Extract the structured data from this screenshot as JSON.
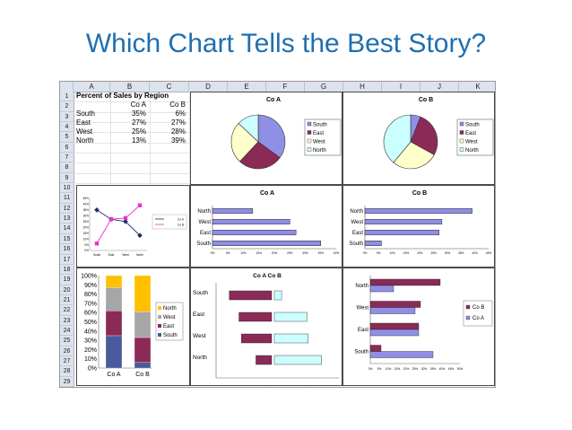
{
  "slide": {
    "title": "Which Chart Tells the Best Story?"
  },
  "sheet": {
    "columns": [
      "A",
      "B",
      "C",
      "D",
      "E",
      "F",
      "G",
      "H",
      "I",
      "J",
      "K"
    ],
    "rows": [
      "1",
      "2",
      "3",
      "4",
      "5",
      "6",
      "7",
      "8",
      "9",
      "10",
      "11",
      "12",
      "13",
      "14",
      "15",
      "16",
      "17",
      "18",
      "19",
      "20",
      "21",
      "22",
      "23",
      "24",
      "25",
      "26",
      "27",
      "28",
      "29"
    ],
    "table": {
      "title": "Percent of Sales by Region",
      "headers": [
        "Co A",
        "Co B"
      ],
      "regions": [
        "South",
        "East",
        "West",
        "North"
      ],
      "co_a": [
        "35%",
        "27%",
        "25%",
        "13%"
      ],
      "co_b": [
        "6%",
        "27%",
        "28%",
        "39%"
      ]
    }
  },
  "colors": {
    "south": "#8f8fe6",
    "east": "#8b2a57",
    "west": "#ffffcc",
    "north": "#ccffff",
    "coa_line": "#1f2a6e",
    "cob_line": "#e633cc",
    "gold": "#ffc000",
    "gray": "#a6a6a6",
    "darkred": "#8b2a57",
    "slate": "#4a5a9c"
  },
  "chart_data": [
    {
      "type": "pie",
      "title": "Co A",
      "categories": [
        "South",
        "East",
        "West",
        "North"
      ],
      "values": [
        35,
        27,
        25,
        13
      ],
      "legend": [
        "South",
        "East",
        "West",
        "North"
      ]
    },
    {
      "type": "pie",
      "title": "Co B",
      "categories": [
        "South",
        "East",
        "West",
        "North"
      ],
      "values": [
        6,
        27,
        28,
        39
      ],
      "legend": [
        "South",
        "East",
        "West",
        "North"
      ]
    },
    {
      "type": "line",
      "title": "",
      "categories": [
        "South",
        "East",
        "West",
        "North"
      ],
      "series": [
        {
          "name": "Co A",
          "values": [
            35,
            27,
            25,
            13
          ]
        },
        {
          "name": "Co B",
          "values": [
            6,
            27,
            28,
            39
          ]
        }
      ],
      "ylim": [
        0,
        45
      ],
      "ytick_labels": [
        "0%",
        "5%",
        "10%",
        "15%",
        "20%",
        "25%",
        "30%",
        "35%",
        "40%",
        "45%"
      ]
    },
    {
      "type": "bar",
      "orientation": "horizontal",
      "title": "Co A",
      "categories": [
        "North",
        "West",
        "East",
        "South"
      ],
      "values": [
        13,
        25,
        27,
        35
      ],
      "xlim": [
        0,
        40
      ],
      "xtick_labels": [
        "0%",
        "5%",
        "10%",
        "15%",
        "20%",
        "25%",
        "30%",
        "35%",
        "40%"
      ]
    },
    {
      "type": "bar",
      "orientation": "horizontal",
      "title": "Co B",
      "categories": [
        "North",
        "West",
        "East",
        "South"
      ],
      "values": [
        39,
        28,
        27,
        6
      ],
      "xlim": [
        0,
        45
      ],
      "xtick_labels": [
        "0%",
        "5%",
        "10%",
        "15%",
        "20%",
        "25%",
        "30%",
        "35%",
        "40%",
        "45%"
      ]
    },
    {
      "type": "bar",
      "stacked": true,
      "percent": true,
      "categories": [
        "Co A",
        "Co B"
      ],
      "series": [
        {
          "name": "South",
          "values": [
            35,
            6
          ]
        },
        {
          "name": "East",
          "values": [
            27,
            27
          ]
        },
        {
          "name": "West",
          "values": [
            25,
            28
          ]
        },
        {
          "name": "North",
          "values": [
            13,
            39
          ]
        }
      ],
      "ylim": [
        0,
        100
      ],
      "ytick_labels": [
        "0%",
        "10%",
        "20%",
        "30%",
        "40%",
        "50%",
        "60%",
        "70%",
        "80%",
        "90%",
        "100%"
      ],
      "legend": [
        "North",
        "West",
        "East",
        "South"
      ]
    },
    {
      "type": "bar",
      "orientation": "horizontal",
      "diverging": true,
      "title": "Co A Co B",
      "categories": [
        "South",
        "East",
        "West",
        "North"
      ],
      "series": [
        {
          "name": "Co A",
          "values": [
            35,
            27,
            25,
            13
          ]
        },
        {
          "name": "Co B",
          "values": [
            6,
            27,
            28,
            39
          ]
        }
      ]
    },
    {
      "type": "bar",
      "orientation": "horizontal",
      "title": "",
      "categories": [
        "North",
        "West",
        "East",
        "South"
      ],
      "series": [
        {
          "name": "Co B",
          "values": [
            39,
            28,
            27,
            6
          ]
        },
        {
          "name": "Co A",
          "values": [
            13,
            25,
            27,
            35
          ]
        }
      ],
      "xlim": [
        0,
        50
      ],
      "xtick_labels": [
        "0%",
        "5%",
        "10%",
        "15%",
        "20%",
        "25%",
        "30%",
        "35%",
        "40%",
        "45%",
        "50%"
      ],
      "legend": [
        "Co B",
        "Co A"
      ]
    }
  ]
}
